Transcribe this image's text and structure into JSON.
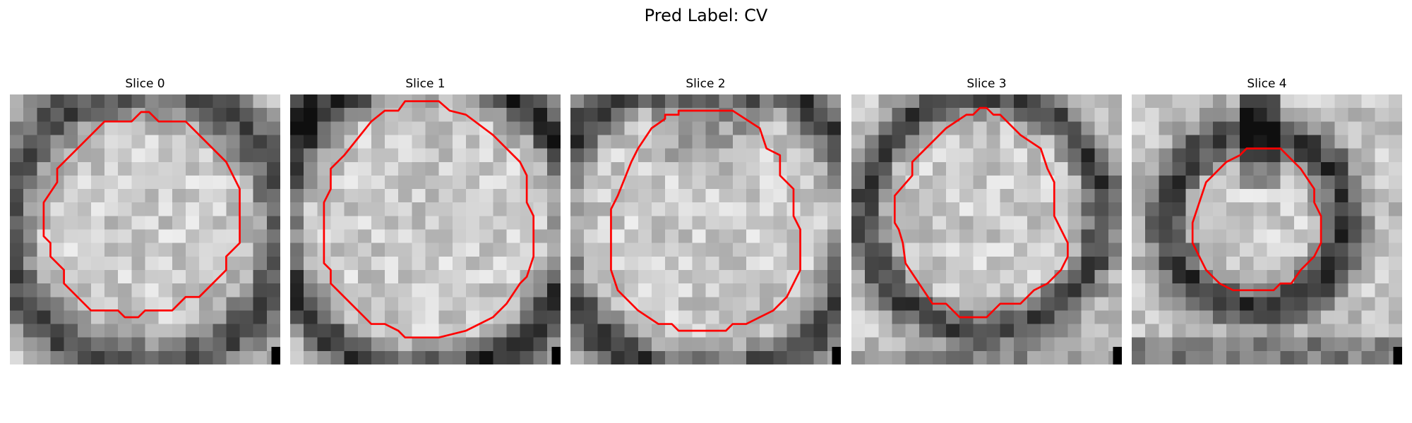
{
  "figure": {
    "title": "Pred Label: CV"
  },
  "overlay_color": "#ff0000",
  "panels": [
    {
      "title": "Slice 0",
      "appearance": "bright vesicle interior with a soft grey ring; light surroundings",
      "darkness": 0.35,
      "ring_width": 3.2,
      "ring_radius": 10.4,
      "contour": [
        [
          7,
          2
        ],
        [
          9,
          2
        ],
        [
          9.7,
          1.3
        ],
        [
          10.3,
          1.3
        ],
        [
          11,
          2
        ],
        [
          13,
          2
        ],
        [
          16,
          5
        ],
        [
          17,
          7
        ],
        [
          17,
          11
        ],
        [
          16,
          12
        ],
        [
          16,
          13
        ],
        [
          14,
          15
        ],
        [
          13,
          15
        ],
        [
          12,
          16
        ],
        [
          10,
          16
        ],
        [
          9.5,
          16.5
        ],
        [
          8.5,
          16.5
        ],
        [
          8,
          16
        ],
        [
          6,
          16
        ],
        [
          4,
          14
        ],
        [
          4,
          13
        ],
        [
          3,
          12
        ],
        [
          3,
          11
        ],
        [
          2.5,
          10.5
        ],
        [
          2.5,
          8
        ],
        [
          3.5,
          6.5
        ],
        [
          3.5,
          5.5
        ]
      ],
      "contour_center": [
        10,
        9.8
      ]
    },
    {
      "title": "Slice 1",
      "appearance": "dark thick vesicle membrane with mottled interior",
      "darkness": 0.7,
      "ring_width": 2.6,
      "ring_radius": 11.2,
      "contour": [
        [
          6,
          2
        ],
        [
          7,
          1.2
        ],
        [
          8,
          1.2
        ],
        [
          8.5,
          0.5
        ],
        [
          11,
          0.5
        ],
        [
          11.8,
          1.2
        ],
        [
          13,
          1.5
        ],
        [
          15,
          3
        ],
        [
          17,
          5
        ],
        [
          17.5,
          6
        ],
        [
          17.5,
          8
        ],
        [
          18,
          9
        ],
        [
          18,
          12
        ],
        [
          17.5,
          13.5
        ],
        [
          17,
          14
        ],
        [
          16,
          15.5
        ],
        [
          15,
          16.5
        ],
        [
          13,
          17.5
        ],
        [
          11,
          18
        ],
        [
          8.5,
          18
        ],
        [
          8,
          17.5
        ],
        [
          7,
          17
        ],
        [
          6,
          17
        ],
        [
          4,
          15
        ],
        [
          3,
          14
        ],
        [
          3,
          13
        ],
        [
          2.5,
          12.5
        ],
        [
          2.5,
          8
        ],
        [
          3,
          7
        ],
        [
          3,
          5.5
        ],
        [
          4,
          4.5
        ]
      ],
      "contour_center": [
        10.2,
        9.5
      ]
    },
    {
      "title": "Slice 2",
      "appearance": "dark cap at top of vesicle, darker ring on the right and bottom",
      "darkness": 0.6,
      "ring_width": 2.8,
      "ring_radius": 11.5,
      "contour": [
        [
          6,
          2.5
        ],
        [
          7,
          1.8
        ],
        [
          7,
          1.5
        ],
        [
          8,
          1.5
        ],
        [
          8,
          1.2
        ],
        [
          12,
          1.2
        ],
        [
          14,
          2.5
        ],
        [
          14.5,
          4
        ],
        [
          15.5,
          4.5
        ],
        [
          15.5,
          6
        ],
        [
          16.5,
          7
        ],
        [
          16.5,
          9
        ],
        [
          17,
          10
        ],
        [
          17,
          13
        ],
        [
          16,
          15
        ],
        [
          15,
          16
        ],
        [
          14,
          16.5
        ],
        [
          13,
          17
        ],
        [
          12,
          17
        ],
        [
          11.5,
          17.5
        ],
        [
          8,
          17.5
        ],
        [
          7.5,
          17
        ],
        [
          6.5,
          17
        ],
        [
          5,
          16
        ],
        [
          3.5,
          14.5
        ],
        [
          3,
          13
        ],
        [
          3,
          8.5
        ],
        [
          3.5,
          7.5
        ],
        [
          4.5,
          5
        ],
        [
          5,
          4
        ]
      ],
      "contour_center": [
        10,
        9.5
      ]
    },
    {
      "title": "Slice 3",
      "appearance": "smaller vesicle, moderately dark membrane, noisy grey background",
      "darkness": 0.45,
      "ring_width": 2.4,
      "ring_radius": 8.8,
      "contour": [
        [
          7,
          2.5
        ],
        [
          8.5,
          1.5
        ],
        [
          9,
          1.5
        ],
        [
          9.5,
          1
        ],
        [
          10,
          1
        ],
        [
          10.5,
          1.5
        ],
        [
          11,
          1.5
        ],
        [
          12.5,
          3
        ],
        [
          14,
          4
        ],
        [
          14.5,
          5.5
        ],
        [
          15,
          6.5
        ],
        [
          15,
          9
        ],
        [
          15.5,
          10
        ],
        [
          16,
          11
        ],
        [
          16,
          12
        ],
        [
          15.5,
          13
        ],
        [
          14.5,
          14
        ],
        [
          13.5,
          14.5
        ],
        [
          12.5,
          15.5
        ],
        [
          11,
          15.5
        ],
        [
          10,
          16.5
        ],
        [
          8,
          16.5
        ],
        [
          7,
          15.5
        ],
        [
          6,
          15.5
        ],
        [
          5,
          14
        ],
        [
          4,
          12.5
        ],
        [
          3.8,
          11
        ],
        [
          3.5,
          10
        ],
        [
          3.2,
          9.5
        ],
        [
          3.2,
          7.5
        ],
        [
          4.5,
          6
        ],
        [
          4.5,
          5
        ]
      ],
      "contour_center": [
        9.8,
        8.8
      ]
    },
    {
      "title": "Slice 4",
      "appearance": "small dark vesicle with a dark streak above and dark band at bottom",
      "darkness": 0.55,
      "ring_width": 2.6,
      "ring_radius": 6.6,
      "contour": [
        [
          7,
          5
        ],
        [
          8,
          4.5
        ],
        [
          8.5,
          4
        ],
        [
          10,
          4
        ],
        [
          11,
          4
        ],
        [
          12.5,
          5.5
        ],
        [
          13.5,
          7
        ],
        [
          13.5,
          8
        ],
        [
          14,
          9
        ],
        [
          14,
          11
        ],
        [
          13.5,
          12
        ],
        [
          12.5,
          13
        ],
        [
          11.8,
          14
        ],
        [
          11,
          14
        ],
        [
          10.5,
          14.5
        ],
        [
          7.5,
          14.5
        ],
        [
          6.5,
          14
        ],
        [
          6,
          13.5
        ],
        [
          5.5,
          13
        ],
        [
          5,
          12
        ],
        [
          4.5,
          11
        ],
        [
          4.5,
          9.5
        ],
        [
          5,
          8
        ],
        [
          5.5,
          6.5
        ],
        [
          6,
          6
        ]
      ],
      "contour_center": [
        9.2,
        9.2
      ]
    }
  ]
}
